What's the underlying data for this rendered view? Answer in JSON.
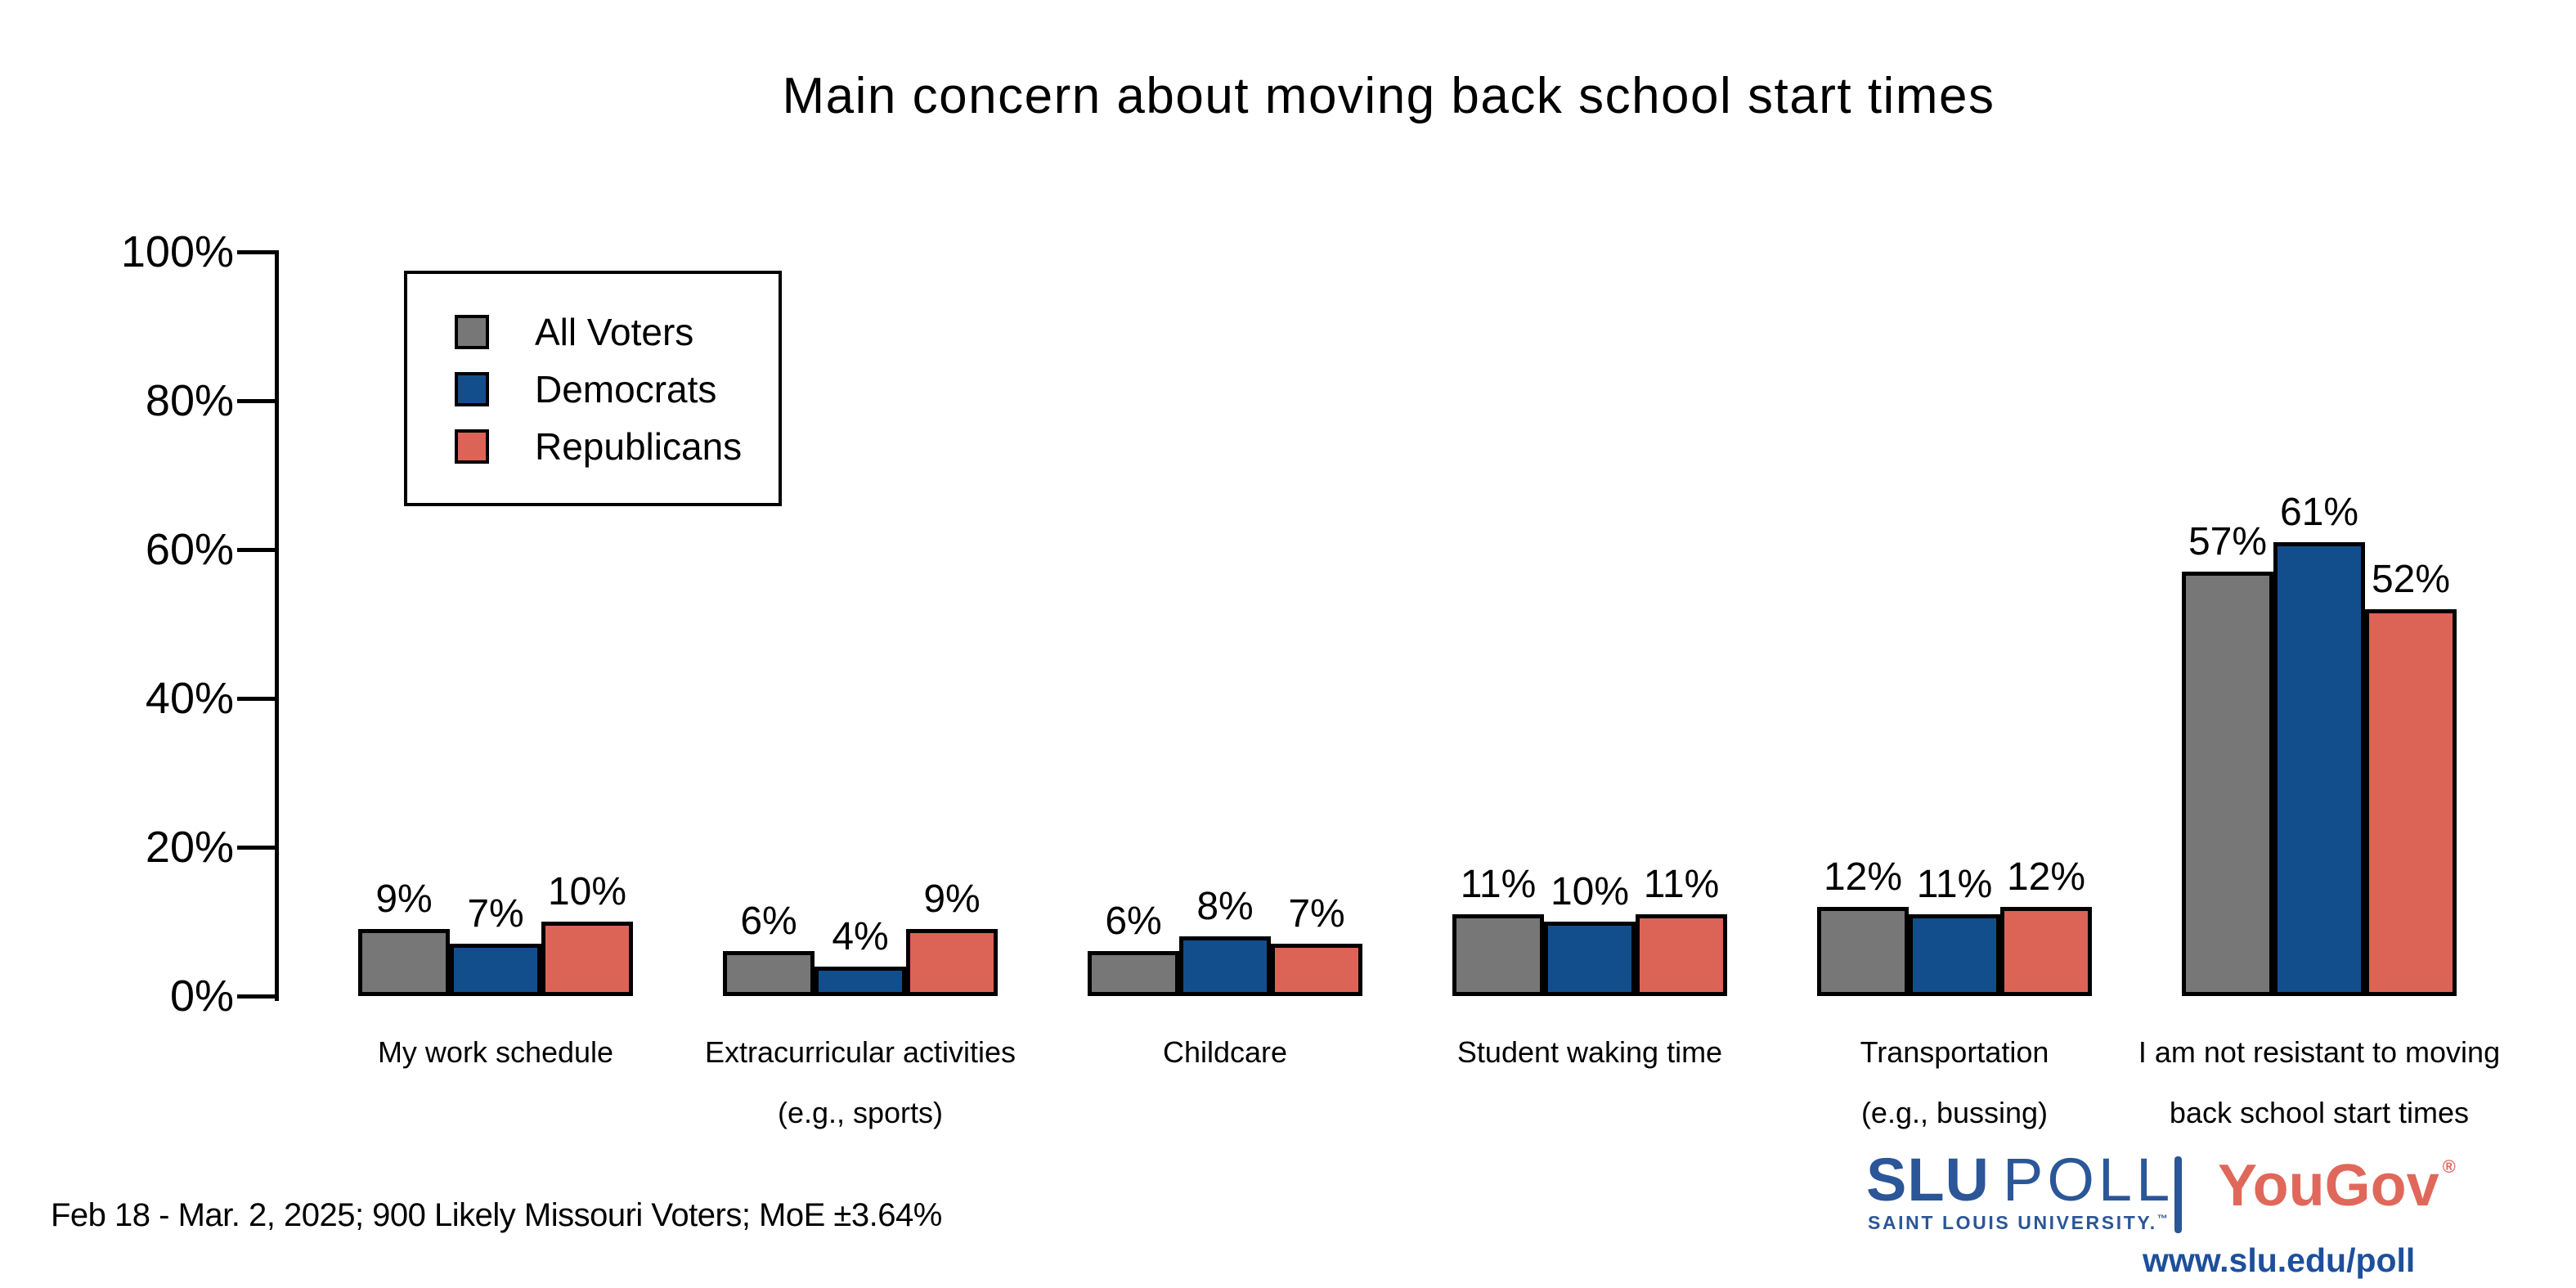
{
  "title": "Main concern about moving back school start times",
  "legend": {
    "items": [
      {
        "label": "All Voters",
        "color": "#777777"
      },
      {
        "label": "Democrats",
        "color": "#134e8c"
      },
      {
        "label": "Republicans",
        "color": "#dc6457"
      }
    ]
  },
  "chart_data": {
    "type": "bar",
    "title": "Main concern about moving back school start times",
    "categories": [
      "My work schedule",
      "Extracurricular activities (e.g., sports)",
      "Childcare",
      "Student waking time",
      "Transportation (e.g., bussing)",
      "I am not resistant to moving back school start times"
    ],
    "categories_lines": [
      [
        "My work schedule"
      ],
      [
        "Extracurricular activities",
        "(e.g., sports)"
      ],
      [
        "Childcare"
      ],
      [
        "Student waking time"
      ],
      [
        "Transportation",
        "(e.g., bussing)"
      ],
      [
        "I am not resistant to moving",
        "back school start times"
      ]
    ],
    "series": [
      {
        "name": "All Voters",
        "color": "#777777",
        "values": [
          9,
          6,
          6,
          11,
          12,
          57
        ]
      },
      {
        "name": "Democrats",
        "color": "#134e8c",
        "values": [
          7,
          4,
          8,
          10,
          11,
          61
        ]
      },
      {
        "name": "Republicans",
        "color": "#dc6457",
        "values": [
          10,
          9,
          7,
          11,
          12,
          52
        ]
      }
    ],
    "value_suffix": "%",
    "xlabel": "",
    "ylabel": "",
    "ylim": [
      0,
      100
    ],
    "yticks": [
      "0%",
      "20%",
      "40%",
      "60%",
      "80%",
      "100%"
    ],
    "grid": false,
    "legend_position": "upper-left-inside"
  },
  "footer": {
    "note": "Feb 18 - Mar. 2, 2025; 900 Likely Missouri Voters; MoE ±3.64%"
  },
  "branding": {
    "slu_bold": "SLU",
    "slu_rest": "POLL",
    "slu_sub": "SAINT LOUIS UNIVERSITY.",
    "slu_tm": "™",
    "yougov": "YouGov",
    "yougov_reg": "®",
    "url": "www.slu.edu/poll",
    "slu_color": "#2b5697",
    "yougov_color": "#e0685a",
    "url_color": "#1d4f9c",
    "separator_color": "#2b5697"
  }
}
